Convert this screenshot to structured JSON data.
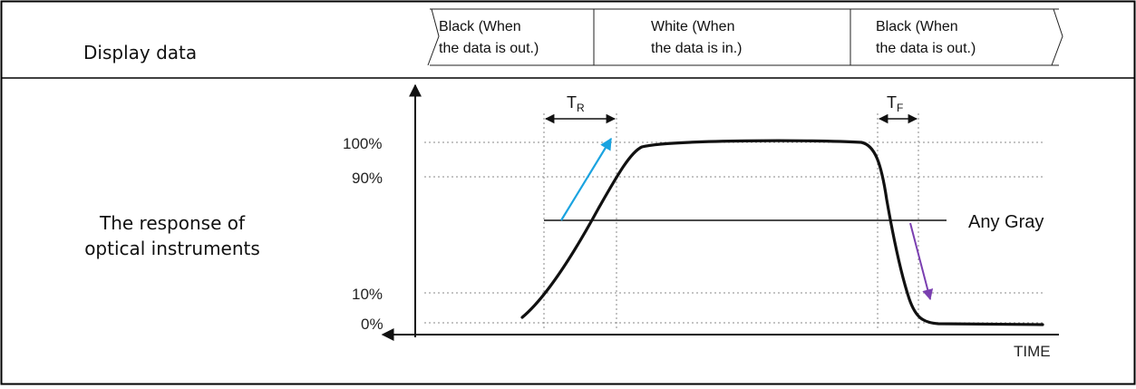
{
  "row_labels": {
    "display_data": "Display data",
    "response_line1": "The response of",
    "response_line2": "optical instruments"
  },
  "data_segments": [
    {
      "line1": "Black (When",
      "line2": "the data is out.)"
    },
    {
      "line1": "White (When",
      "line2": "the data is in.)"
    },
    {
      "line1": "Black (When",
      "line2": "the data is out.)"
    }
  ],
  "axis": {
    "x_label": "TIME",
    "levels": [
      {
        "label": "100%",
        "value": 100
      },
      {
        "label": "90%",
        "value": 90
      },
      {
        "label": "10%",
        "value": 10
      },
      {
        "label": "0%",
        "value": 0
      }
    ]
  },
  "timing": {
    "rise": {
      "main": "T",
      "sub": "R"
    },
    "fall": {
      "main": "T",
      "sub": "F"
    }
  },
  "annotation": {
    "any_gray": "Any Gray"
  },
  "colors": {
    "rise_arrow": "#1aa3e0",
    "fall_arrow": "#7a3fb0",
    "curve": "#111111",
    "grid": "#888888"
  }
}
